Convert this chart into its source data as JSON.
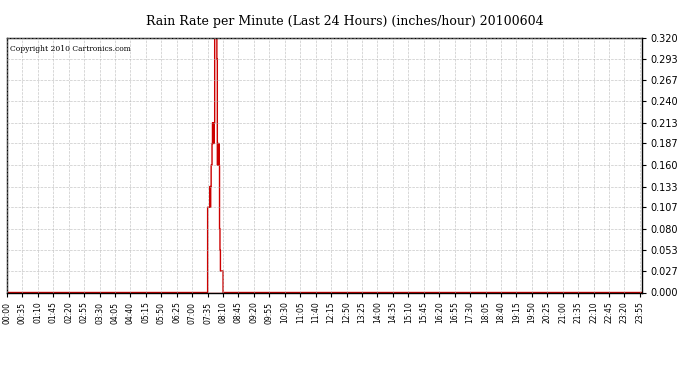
{
  "title": "Rain Rate per Minute (Last 24 Hours) (inches/hour) 20100604",
  "copyright": "Copyright 2010 Cartronics.com",
  "background_color": "#ffffff",
  "plot_bg_color": "#ffffff",
  "line_color": "#cc0000",
  "grid_color": "#b0b0b0",
  "ylim": [
    0.0,
    0.32
  ],
  "yticks": [
    0.0,
    0.027,
    0.053,
    0.08,
    0.107,
    0.133,
    0.16,
    0.187,
    0.213,
    0.24,
    0.267,
    0.293,
    0.32
  ],
  "total_minutes": 1440,
  "rain_data": [
    [
      455,
      0.107
    ],
    [
      456,
      0.107
    ],
    [
      457,
      0.107
    ],
    [
      458,
      0.107
    ],
    [
      459,
      0.107
    ],
    [
      460,
      0.133
    ],
    [
      461,
      0.107
    ],
    [
      462,
      0.133
    ],
    [
      463,
      0.16
    ],
    [
      464,
      0.16
    ],
    [
      465,
      0.187
    ],
    [
      466,
      0.213
    ],
    [
      467,
      0.187
    ],
    [
      468,
      0.213
    ],
    [
      469,
      0.187
    ],
    [
      470,
      0.213
    ],
    [
      471,
      0.32
    ],
    [
      472,
      0.32
    ],
    [
      473,
      0.32
    ],
    [
      474,
      0.32
    ],
    [
      475,
      0.32
    ],
    [
      476,
      0.293
    ],
    [
      477,
      0.16
    ],
    [
      478,
      0.187
    ],
    [
      479,
      0.16
    ],
    [
      480,
      0.187
    ],
    [
      481,
      0.16
    ],
    [
      482,
      0.08
    ],
    [
      483,
      0.053
    ],
    [
      484,
      0.027
    ],
    [
      485,
      0.027
    ],
    [
      486,
      0.027
    ],
    [
      487,
      0.027
    ],
    [
      488,
      0.027
    ],
    [
      489,
      0.027
    ]
  ],
  "xlabels_minutes": [
    0,
    35,
    70,
    105,
    140,
    175,
    210,
    245,
    280,
    315,
    350,
    385,
    420,
    455,
    490,
    525,
    560,
    595,
    630,
    665,
    700,
    735,
    770,
    805,
    840,
    875,
    910,
    945,
    980,
    1015,
    1050,
    1085,
    1120,
    1155,
    1190,
    1225,
    1260,
    1295,
    1330,
    1365,
    1400,
    1435
  ],
  "xlabels": [
    "00:00",
    "00:35",
    "01:10",
    "01:45",
    "02:20",
    "02:55",
    "03:30",
    "04:05",
    "04:40",
    "05:15",
    "05:50",
    "06:25",
    "07:00",
    "07:35",
    "08:10",
    "08:45",
    "09:20",
    "09:55",
    "10:30",
    "11:05",
    "11:40",
    "12:15",
    "12:50",
    "13:25",
    "14:00",
    "14:35",
    "15:10",
    "15:45",
    "16:20",
    "16:55",
    "17:30",
    "18:05",
    "18:40",
    "19:15",
    "19:50",
    "20:25",
    "21:00",
    "21:35",
    "22:10",
    "22:45",
    "23:20",
    "23:55"
  ]
}
